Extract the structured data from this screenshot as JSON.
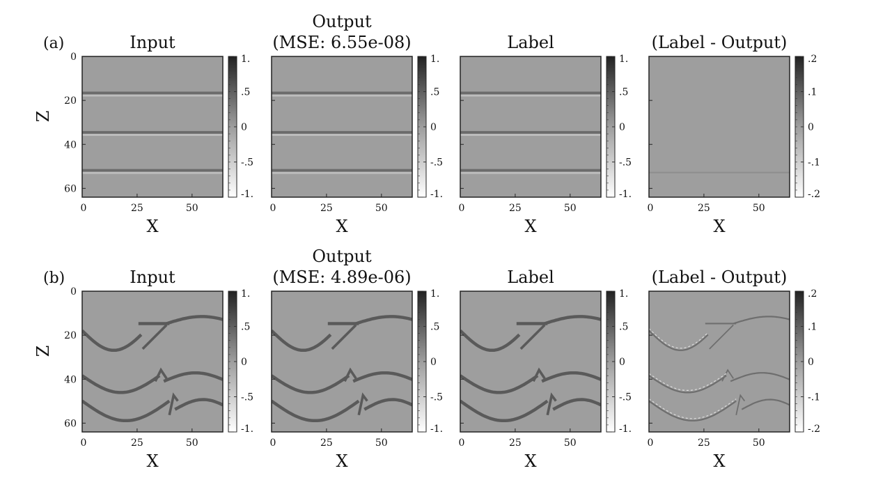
{
  "figure": {
    "rows": [
      {
        "label": "(a)",
        "panels": [
          {
            "title": [
              "Input"
            ],
            "colorbar": [
              "1.",
              ".5",
              "0",
              "-.5",
              "-1."
            ]
          },
          {
            "title": [
              "Output",
              "(MSE: 6.55e-08)"
            ],
            "colorbar": [
              "1.",
              ".5",
              "0",
              "-.5",
              "-1."
            ]
          },
          {
            "title": [
              "Label"
            ],
            "colorbar": [
              "1.",
              ".5",
              "0",
              "-.5",
              "-1."
            ]
          },
          {
            "title": [
              "(Label - Output)"
            ],
            "colorbar": [
              ".2",
              ".1",
              "0",
              "-.1",
              "-.2"
            ]
          }
        ],
        "y_ticks": [
          "0",
          "20",
          "40",
          "60"
        ],
        "x_ticks": [
          "0",
          "25",
          "50"
        ],
        "xlabel": "X",
        "ylabel": "Z"
      },
      {
        "label": "(b)",
        "panels": [
          {
            "title": [
              "Input"
            ],
            "colorbar": [
              "1.",
              ".5",
              "0",
              "-.5",
              "-1."
            ]
          },
          {
            "title": [
              "Output",
              "(MSE: 4.89e-06)"
            ],
            "colorbar": [
              "1.",
              ".5",
              "0",
              "-.5",
              "-1."
            ]
          },
          {
            "title": [
              "Label"
            ],
            "colorbar": [
              "1.",
              ".5",
              "0",
              "-.5",
              "-1."
            ]
          },
          {
            "title": [
              "(Label - Output)"
            ],
            "colorbar": [
              ".2",
              ".1",
              "0",
              "-.1",
              "-.2"
            ]
          }
        ],
        "y_ticks": [
          "0",
          "20",
          "40",
          "60"
        ],
        "x_ticks": [
          "0",
          "25",
          "50"
        ],
        "xlabel": "X",
        "ylabel": "Z"
      }
    ],
    "colors": {
      "background": "#9e9e9e",
      "reflector": "#5a5a5a",
      "highlight": "#d2d2d2",
      "frame": "#222222"
    }
  }
}
